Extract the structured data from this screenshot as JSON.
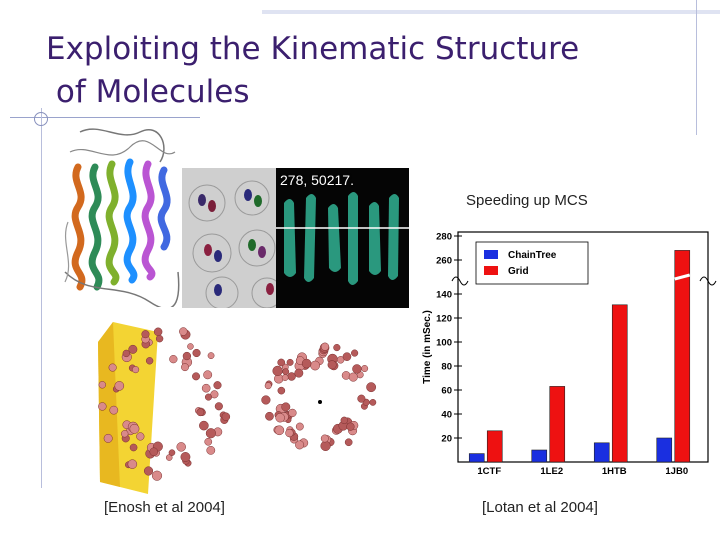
{
  "slide": {
    "title_line1": "Exploiting the Kinematic Structure",
    "title_line2": " of Molecules",
    "overlay_citation": "278, 50217.",
    "chart_heading": "Speeding up MCS",
    "caption_left": "[Enosh et al 2004]",
    "caption_right": "[Lotan et al 2004]"
  },
  "chart_data": {
    "type": "bar",
    "categories": [
      "1CTF",
      "1LE2",
      "1HTB",
      "1JB0"
    ],
    "series": [
      {
        "name": "ChainTree",
        "values": [
          7,
          10,
          16,
          20
        ],
        "color": "#1a2fe0"
      },
      {
        "name": "Grid",
        "values": [
          26,
          63,
          131,
          268
        ],
        "color": "#ee1111"
      }
    ],
    "ylabel": "Time (in mSec.)",
    "ylim": [
      0,
      280
    ],
    "axis_break": [
      145,
      255
    ],
    "yticks": [
      20,
      40,
      60,
      80,
      100,
      120,
      140,
      260,
      280
    ],
    "legend": "top-left",
    "grid": false
  }
}
